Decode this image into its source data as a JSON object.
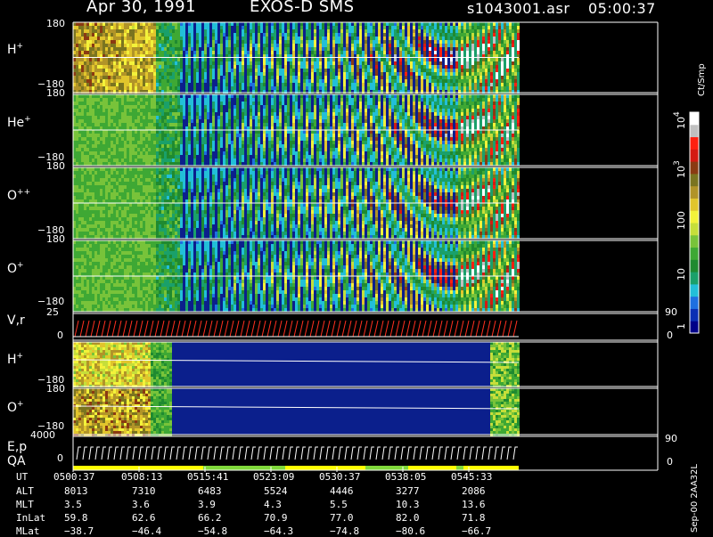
{
  "header": {
    "date": "Apr 30, 1991",
    "instrument": "EXOS-D SMS",
    "file": "s1043001.asr",
    "time": "05:00:37"
  },
  "colorbar": {
    "unit_label": "Ct/Smp",
    "tick_labels": [
      "1",
      "10",
      "100",
      "10",
      "10"
    ],
    "tick_label_exponents": [
      "",
      "",
      "",
      "3",
      "4"
    ],
    "colors": [
      "#000088",
      "#0b2fb4",
      "#1e6fe0",
      "#22bfd8",
      "#1aa06a",
      "#1f8a30",
      "#3ea834",
      "#78c33a",
      "#c6de3a",
      "#f3f23a",
      "#e1c52c",
      "#b19428",
      "#7a7420",
      "#8a3a12",
      "#d41a12",
      "#ff2010",
      "#c0c0c0",
      "#ffffff"
    ]
  },
  "panels": [
    {
      "label_base": "H",
      "label_sup": "+",
      "ytop": "180",
      "ybot": "−180"
    },
    {
      "label_base": "He",
      "label_sup": "+",
      "ytop": "180",
      "ybot": "−180"
    },
    {
      "label_base": "O",
      "label_sup": "++",
      "ytop": "180",
      "ybot": "−180"
    },
    {
      "label_base": "O",
      "label_sup": "+",
      "ytop": "180",
      "ybot": "−180"
    },
    {
      "label_base": "V,r",
      "label_sup": "",
      "ytop": "25",
      "ybot": "0",
      "right_top": "90",
      "right_bot": "0"
    },
    {
      "label_base": "H",
      "label_sup": "+",
      "ytop": "",
      "ybot": "−180"
    },
    {
      "label_base": "O",
      "label_sup": "+",
      "ytop": "180",
      "ybot": "−180"
    },
    {
      "label_base": "E,p",
      "label_sup": "",
      "label2": "QA",
      "ytop": "4000",
      "ybot": "0",
      "right_top": "90",
      "right_bot": "0"
    }
  ],
  "ephemeris": {
    "row_labels": [
      "UT",
      "ALT",
      "MLT",
      "InLat",
      "MLat"
    ],
    "columns": [
      {
        "UT": "0500:37",
        "ALT": "8013",
        "MLT": "3.5",
        "InLat": "59.8",
        "MLat": "−38.7"
      },
      {
        "UT": "0508:13",
        "ALT": "7310",
        "MLT": "3.6",
        "InLat": "62.6",
        "MLat": "−46.4"
      },
      {
        "UT": "0515:41",
        "ALT": "6483",
        "MLT": "3.9",
        "InLat": "66.2",
        "MLat": "−54.8"
      },
      {
        "UT": "0523:09",
        "ALT": "5524",
        "MLT": "4.3",
        "InLat": "70.9",
        "MLat": "−64.3"
      },
      {
        "UT": "0530:37",
        "ALT": "4446",
        "MLT": "5.5",
        "InLat": "77.0",
        "MLat": "−74.8"
      },
      {
        "UT": "0538:05",
        "ALT": "3277",
        "MLT": "10.3",
        "InLat": "82.0",
        "MLat": "−80.6"
      },
      {
        "UT": "0545:33",
        "ALT": "2086",
        "MLT": "13.6",
        "InLat": "71.8",
        "MLat": "−66.7"
      }
    ]
  },
  "footer_note": "Sep-00 2AA32L",
  "chart_data": {
    "type": "heatmap",
    "x": [
      "0500:37",
      "0508:13",
      "0515:41",
      "0523:09",
      "0530:37",
      "0538:05",
      "0545:33"
    ],
    "series": [
      {
        "name": "H+",
        "ylim": [
          -180,
          180
        ]
      },
      {
        "name": "He+",
        "ylim": [
          -180,
          180
        ]
      },
      {
        "name": "O++",
        "ylim": [
          -180,
          180
        ]
      },
      {
        "name": "O+",
        "ylim": [
          -180,
          180
        ]
      },
      {
        "name": "V,r",
        "ylim": [
          0,
          25
        ]
      },
      {
        "name": "H+",
        "ylim": [
          -180,
          180
        ]
      },
      {
        "name": "O+",
        "ylim": [
          -180,
          180
        ]
      },
      {
        "name": "E,p",
        "ylim": [
          0,
          4000
        ]
      }
    ],
    "colorscale": "log counts per sample (1 to 10^4)"
  }
}
